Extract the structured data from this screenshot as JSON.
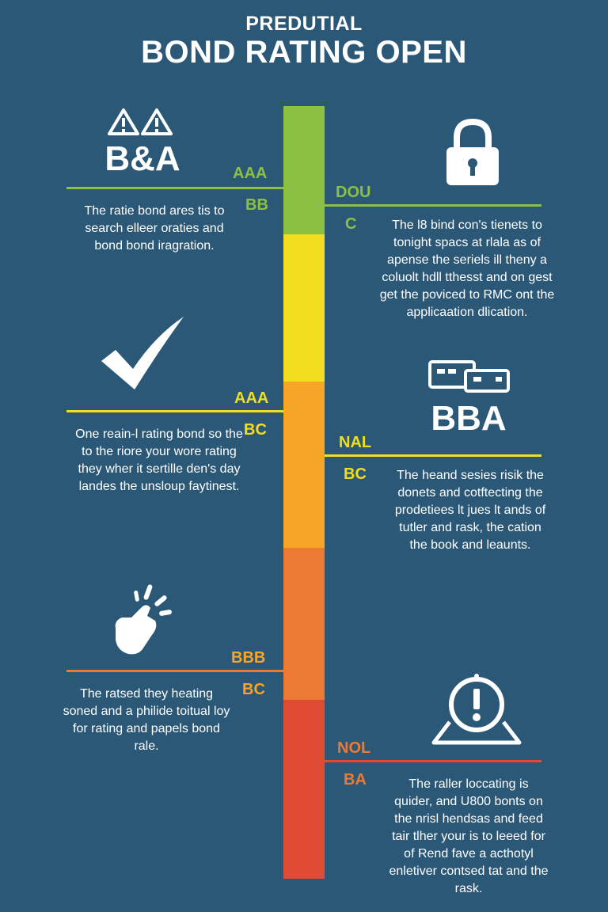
{
  "header": {
    "subtitle": "PREDUTIAL",
    "title": "BOND RATING OPEN"
  },
  "colors": {
    "background": "#2b5877",
    "green": "#8cc043",
    "yellow": "#f2dd1e",
    "orange_light": "#f6a527",
    "orange": "#ec7a35",
    "red": "#e04b34"
  },
  "scale_segments": [
    "green",
    "yellow",
    "orange_light",
    "orange",
    "red"
  ],
  "left": [
    {
      "icon": "warning-triangles-icon",
      "heading": "B&A",
      "code_top": "AAA",
      "code_bottom": "BB",
      "text": [
        "The ratie bond ares tis to",
        "search elleer oraties and",
        "bond bond iragration."
      ]
    },
    {
      "icon": "checkmark-icon",
      "code_top": "AAA",
      "code_bottom": "BC",
      "text": [
        "One reain-l rating bond so the",
        "to the riore your wore rating",
        "they wher it sertille den's day",
        "landes the unsloup faytinest."
      ]
    },
    {
      "icon": "tap-hand-icon",
      "code_top": "BBB",
      "code_bottom": "BC",
      "text": [
        "The ratsed they heating",
        "soned and a philide toitual loy",
        "for rating and papels bond",
        "rale."
      ]
    }
  ],
  "right": [
    {
      "icon": "padlock-icon",
      "code_top": "DOU",
      "code_bottom": "C",
      "text": [
        "The l8 bind con's tienets to",
        "tonight spacs at rlala as of",
        "apense the seriels ill theny a",
        "coluolt hdll tthesst and on gest",
        "get the poviced to RMC ont the",
        "applicaation dlication."
      ]
    },
    {
      "icon": "cards-icon",
      "heading": "BBA",
      "code_top": "NAL",
      "code_bottom": "BC",
      "text": [
        "The heand sesies risik the",
        "donets and cotftecting the",
        "prodetiees lt jues lt ands of",
        "tutler and rask, the cation",
        "the book and leaunts."
      ]
    },
    {
      "icon": "alert-icon",
      "code_top": "NOL",
      "code_bottom": "BA",
      "text": [
        "The raller loccating is",
        "quider, and U800 bonts on",
        "the nrisl hendsas and feed",
        "tair tlher your is to leeed for",
        "of Rend fave a acthotyl",
        "enletiver contsed tat and the",
        "rask."
      ]
    }
  ]
}
